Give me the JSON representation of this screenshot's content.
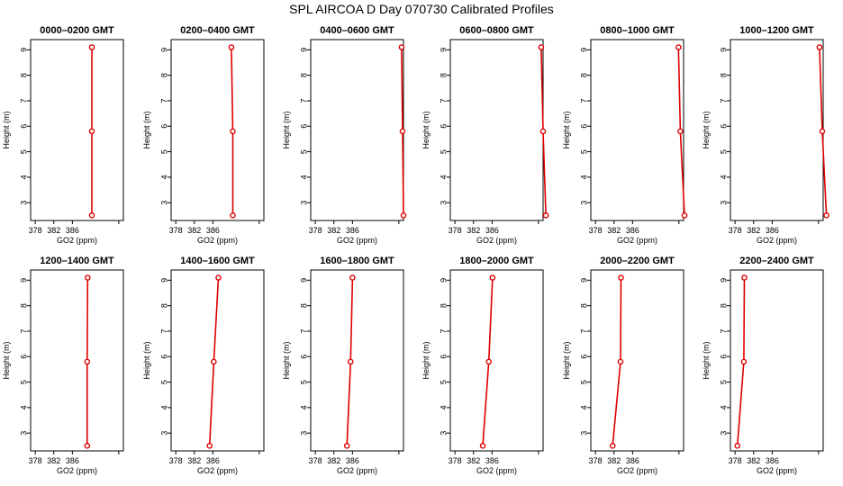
{
  "title": "SPL AIRCOA D  Day 070730  Calibrated Profiles",
  "colors": {
    "series": "#dd0000",
    "axes": "#000000"
  },
  "chart_data": [
    {
      "type": "line",
      "title": "0000–0200 GMT",
      "xlabel": "GO2 (ppm)",
      "ylabel": "Height (m)",
      "xlim": [
        377,
        397
      ],
      "ylim": [
        2.3,
        9.4
      ],
      "xticks": [
        378,
        382,
        386
      ],
      "yticks": [
        3,
        4,
        5,
        6,
        7,
        8,
        9
      ],
      "x": [
        390.2,
        390.2,
        390.2
      ],
      "y": [
        2.5,
        5.8,
        9.1
      ]
    },
    {
      "type": "line",
      "title": "0200–0400 GMT",
      "xlabel": "GO2 (ppm)",
      "ylabel": "Height (m)",
      "xlim": [
        377,
        397
      ],
      "ylim": [
        2.3,
        9.4
      ],
      "xticks": [
        378,
        382,
        386
      ],
      "yticks": [
        3,
        4,
        5,
        6,
        7,
        8,
        9
      ],
      "x": [
        390.3,
        390.3,
        390.0
      ],
      "y": [
        2.5,
        5.8,
        9.1
      ]
    },
    {
      "type": "line",
      "title": "0400–0600 GMT",
      "xlabel": "GO2 (ppm)",
      "ylabel": "Height (m)",
      "xlim": [
        377,
        397
      ],
      "ylim": [
        2.3,
        9.4
      ],
      "xticks": [
        378,
        382,
        386
      ],
      "yticks": [
        3,
        4,
        5,
        6,
        7,
        8,
        9
      ],
      "x": [
        397.0,
        396.8,
        396.6
      ],
      "y": [
        2.5,
        5.8,
        9.1
      ]
    },
    {
      "type": "line",
      "title": "0600–0800 GMT",
      "xlabel": "GO2 (ppm)",
      "ylabel": "Height (m)",
      "xlim": [
        377,
        397
      ],
      "ylim": [
        2.3,
        9.4
      ],
      "xticks": [
        378,
        382,
        386
      ],
      "yticks": [
        3,
        4,
        5,
        6,
        7,
        8,
        9
      ],
      "x": [
        397.6,
        397.0,
        396.6
      ],
      "y": [
        2.5,
        5.8,
        9.1
      ]
    },
    {
      "type": "line",
      "title": "0800–1000 GMT",
      "xlabel": "GO2 (ppm)",
      "ylabel": "Height (m)",
      "xlim": [
        377,
        397
      ],
      "ylim": [
        2.3,
        9.4
      ],
      "xticks": [
        378,
        382,
        386
      ],
      "yticks": [
        3,
        4,
        5,
        6,
        7,
        8,
        9
      ],
      "x": [
        397.2,
        396.3,
        395.9
      ],
      "y": [
        2.5,
        5.8,
        9.1
      ]
    },
    {
      "type": "line",
      "title": "1000–1200 GMT",
      "xlabel": "GO2 (ppm)",
      "ylabel": "Height (m)",
      "xlim": [
        377,
        397
      ],
      "ylim": [
        2.3,
        9.4
      ],
      "xticks": [
        378,
        382,
        386
      ],
      "yticks": [
        3,
        4,
        5,
        6,
        7,
        8,
        9
      ],
      "x": [
        397.7,
        396.8,
        396.2
      ],
      "y": [
        2.5,
        5.8,
        9.1
      ]
    },
    {
      "type": "line",
      "title": "1200–1400 GMT",
      "xlabel": "GO2 (ppm)",
      "ylabel": "Height (m)",
      "xlim": [
        377,
        397
      ],
      "ylim": [
        2.3,
        9.4
      ],
      "xticks": [
        378,
        382,
        386
      ],
      "yticks": [
        3,
        4,
        5,
        6,
        7,
        8,
        9
      ],
      "x": [
        389.2,
        389.2,
        389.3
      ],
      "y": [
        2.5,
        5.8,
        9.1
      ]
    },
    {
      "type": "line",
      "title": "1400–1600 GMT",
      "xlabel": "GO2 (ppm)",
      "ylabel": "Height (m)",
      "xlim": [
        377,
        397
      ],
      "ylim": [
        2.3,
        9.4
      ],
      "xticks": [
        378,
        382,
        386
      ],
      "yticks": [
        3,
        4,
        5,
        6,
        7,
        8,
        9
      ],
      "x": [
        385.3,
        386.2,
        387.2
      ],
      "y": [
        2.5,
        5.8,
        9.1
      ]
    },
    {
      "type": "line",
      "title": "1600–1800 GMT",
      "xlabel": "GO2 (ppm)",
      "ylabel": "Height (m)",
      "xlim": [
        377,
        397
      ],
      "ylim": [
        2.3,
        9.4
      ],
      "xticks": [
        378,
        382,
        386
      ],
      "yticks": [
        3,
        4,
        5,
        6,
        7,
        8,
        9
      ],
      "x": [
        384.8,
        385.6,
        386.0
      ],
      "y": [
        2.5,
        5.8,
        9.1
      ]
    },
    {
      "type": "line",
      "title": "1800–2000 GMT",
      "xlabel": "GO2 (ppm)",
      "ylabel": "Height (m)",
      "xlim": [
        377,
        397
      ],
      "ylim": [
        2.3,
        9.4
      ],
      "xticks": [
        378,
        382,
        386
      ],
      "yticks": [
        3,
        4,
        5,
        6,
        7,
        8,
        9
      ],
      "x": [
        384.0,
        385.3,
        386.1
      ],
      "y": [
        2.5,
        5.8,
        9.1
      ]
    },
    {
      "type": "line",
      "title": "2000–2200 GMT",
      "xlabel": "GO2 (ppm)",
      "ylabel": "Height (m)",
      "xlim": [
        377,
        397
      ],
      "ylim": [
        2.3,
        9.4
      ],
      "xticks": [
        378,
        382,
        386
      ],
      "yticks": [
        3,
        4,
        5,
        6,
        7,
        8,
        9
      ],
      "x": [
        381.7,
        383.4,
        383.5
      ],
      "y": [
        2.5,
        5.8,
        9.1
      ]
    },
    {
      "type": "line",
      "title": "2200–2400 GMT",
      "xlabel": "GO2 (ppm)",
      "ylabel": "Height (m)",
      "xlim": [
        377,
        397
      ],
      "ylim": [
        2.3,
        9.4
      ],
      "xticks": [
        378,
        382,
        386
      ],
      "yticks": [
        3,
        4,
        5,
        6,
        7,
        8,
        9
      ],
      "x": [
        378.5,
        379.9,
        380.0
      ],
      "y": [
        2.5,
        5.8,
        9.1
      ]
    }
  ]
}
